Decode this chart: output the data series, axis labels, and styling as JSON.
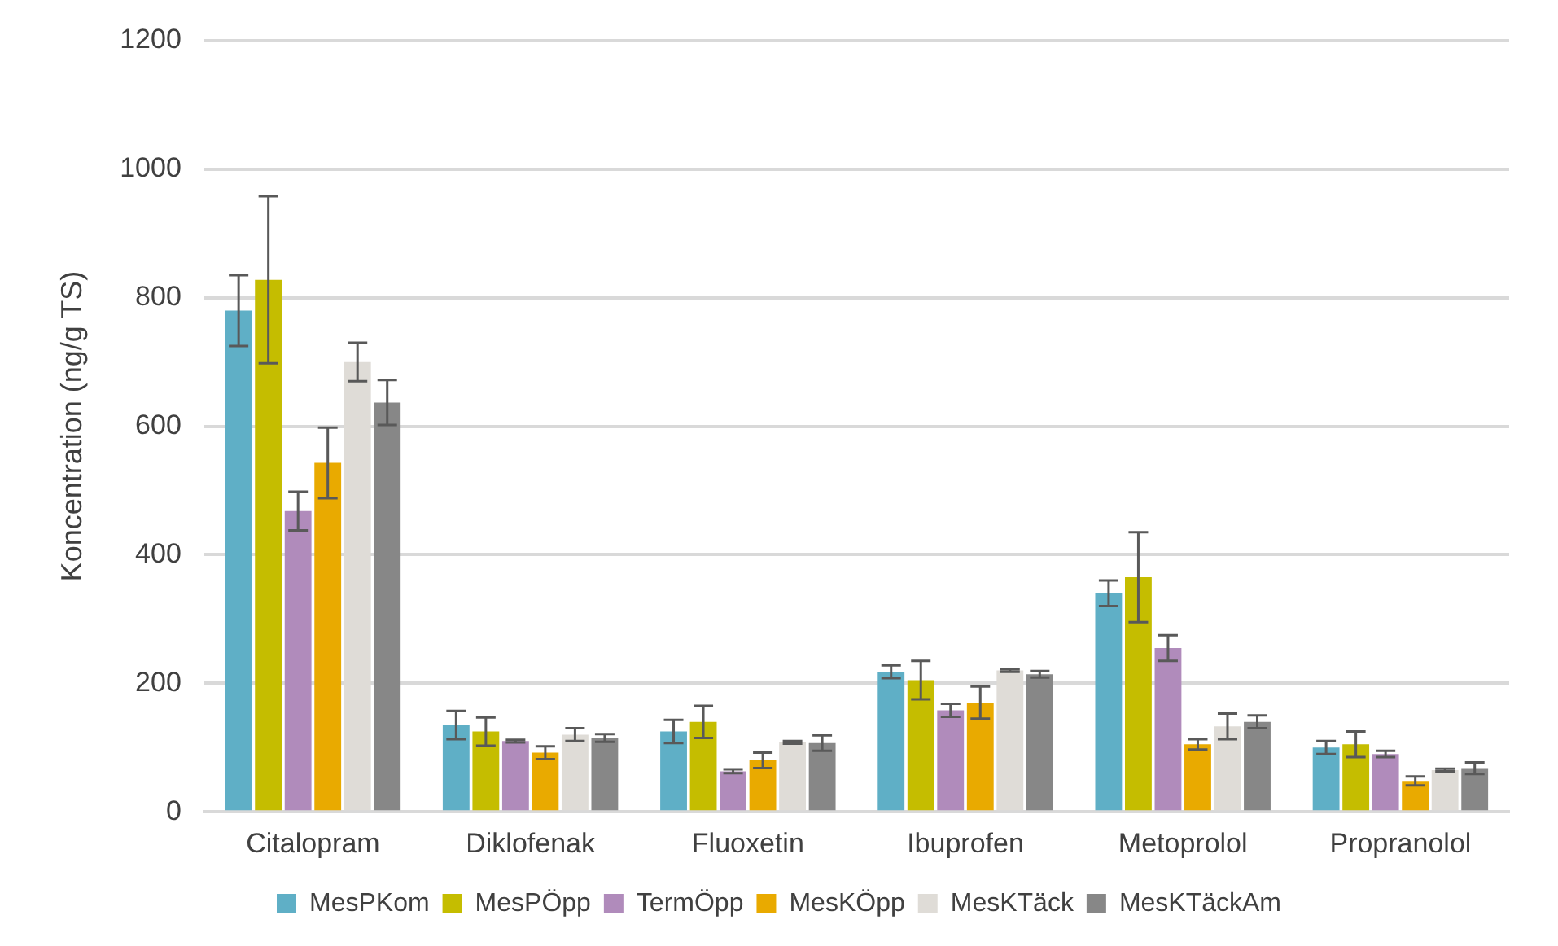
{
  "chart_data": {
    "type": "bar",
    "ylabel": "Koncentration (ng/g TS)",
    "categories": [
      "Citalopram",
      "Diklofenak",
      "Fluoxetin",
      "Ibuprofen",
      "Metoprolol",
      "Propranolol"
    ],
    "series": [
      {
        "name": "MesPKom",
        "color": "#5fafc6",
        "values": [
          780,
          135,
          125,
          218,
          340,
          100
        ],
        "errors": [
          55,
          22,
          18,
          10,
          20,
          10
        ]
      },
      {
        "name": "MesPÖpp",
        "color": "#c5bd00",
        "values": [
          828,
          125,
          140,
          205,
          365,
          105
        ],
        "errors": [
          130,
          22,
          25,
          30,
          70,
          20
        ]
      },
      {
        "name": "TermÖpp",
        "color": "#b08bbb",
        "values": [
          468,
          110,
          63,
          158,
          255,
          90
        ],
        "errors": [
          30,
          2,
          3,
          10,
          20,
          5
        ]
      },
      {
        "name": "MesKÖpp",
        "color": "#e9aa00",
        "values": [
          543,
          92,
          80,
          170,
          105,
          48
        ],
        "errors": [
          55,
          10,
          12,
          25,
          8,
          7
        ]
      },
      {
        "name": "MesKTäck",
        "color": "#dfdcd7",
        "values": [
          700,
          120,
          108,
          220,
          133,
          65
        ],
        "errors": [
          30,
          10,
          2,
          2,
          20,
          2
        ]
      },
      {
        "name": "MesKTäckAm",
        "color": "#878787",
        "values": [
          637,
          115,
          107,
          214,
          140,
          68
        ],
        "errors": [
          35,
          6,
          12,
          5,
          10,
          9
        ]
      }
    ],
    "ylim": [
      0,
      1200
    ],
    "yticks": [
      0,
      200,
      400,
      600,
      800,
      1000,
      1200
    ],
    "grid": "y",
    "legend": "bottom"
  }
}
